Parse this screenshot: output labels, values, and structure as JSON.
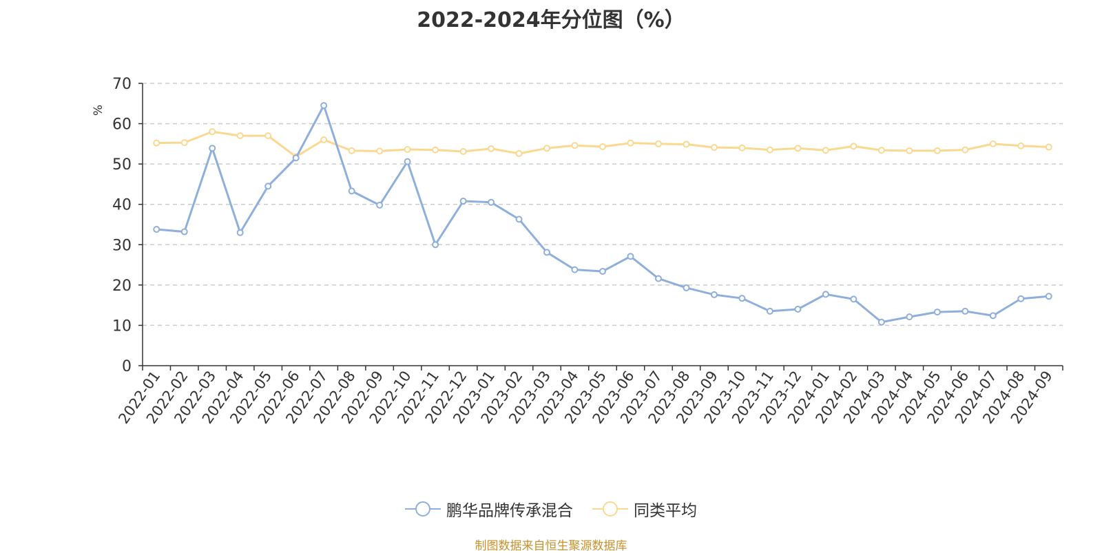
{
  "colors": {
    "series1": "#8eaedb",
    "series2": "#fbd88f",
    "source": "#c8912a",
    "ylabel": "#e02020",
    "grid": "#cccccc"
  },
  "chart_data": {
    "type": "line",
    "title": "2022-2024年分位图（%）",
    "ylabel": "%",
    "xlabel": "",
    "ylim": [
      0,
      70
    ],
    "yticks": [
      0,
      10,
      20,
      30,
      40,
      50,
      60,
      70
    ],
    "grid": true,
    "legend_position": "bottom",
    "categories": [
      "2022-01",
      "2022-02",
      "2022-03",
      "2022-04",
      "2022-05",
      "2022-06",
      "2022-07",
      "2022-08",
      "2022-09",
      "2022-10",
      "2022-11",
      "2022-12",
      "2023-01",
      "2023-02",
      "2023-03",
      "2023-04",
      "2023-05",
      "2023-06",
      "2023-07",
      "2023-08",
      "2023-09",
      "2023-10",
      "2023-11",
      "2023-12",
      "2024-01",
      "2024-02",
      "2024-03",
      "2024-04",
      "2024-05",
      "2024-06",
      "2024-07",
      "2024-08",
      "2024-09"
    ],
    "series": [
      {
        "name": "鹏华品牌传承混合",
        "values": [
          33.8,
          33.2,
          53.9,
          33.0,
          44.5,
          51.5,
          64.5,
          43.3,
          39.8,
          50.6,
          30.0,
          40.8,
          40.5,
          36.3,
          28.1,
          23.8,
          23.4,
          27.1,
          21.6,
          19.3,
          17.6,
          16.7,
          13.5,
          14.0,
          17.7,
          16.5,
          10.8,
          12.1,
          13.3,
          13.5,
          12.4,
          16.6,
          17.2
        ]
      },
      {
        "name": "同类平均",
        "values": [
          55.2,
          55.3,
          58.0,
          57.0,
          57.0,
          51.8,
          56.0,
          53.3,
          53.2,
          53.6,
          53.5,
          53.1,
          53.8,
          52.6,
          53.9,
          54.6,
          54.3,
          55.2,
          55.0,
          54.9,
          54.1,
          54.0,
          53.5,
          53.9,
          53.4,
          54.4,
          53.4,
          53.3,
          53.3,
          53.5,
          55.0,
          54.5,
          54.2
        ]
      }
    ]
  },
  "source_text": "制图数据来自恒生聚源数据库"
}
